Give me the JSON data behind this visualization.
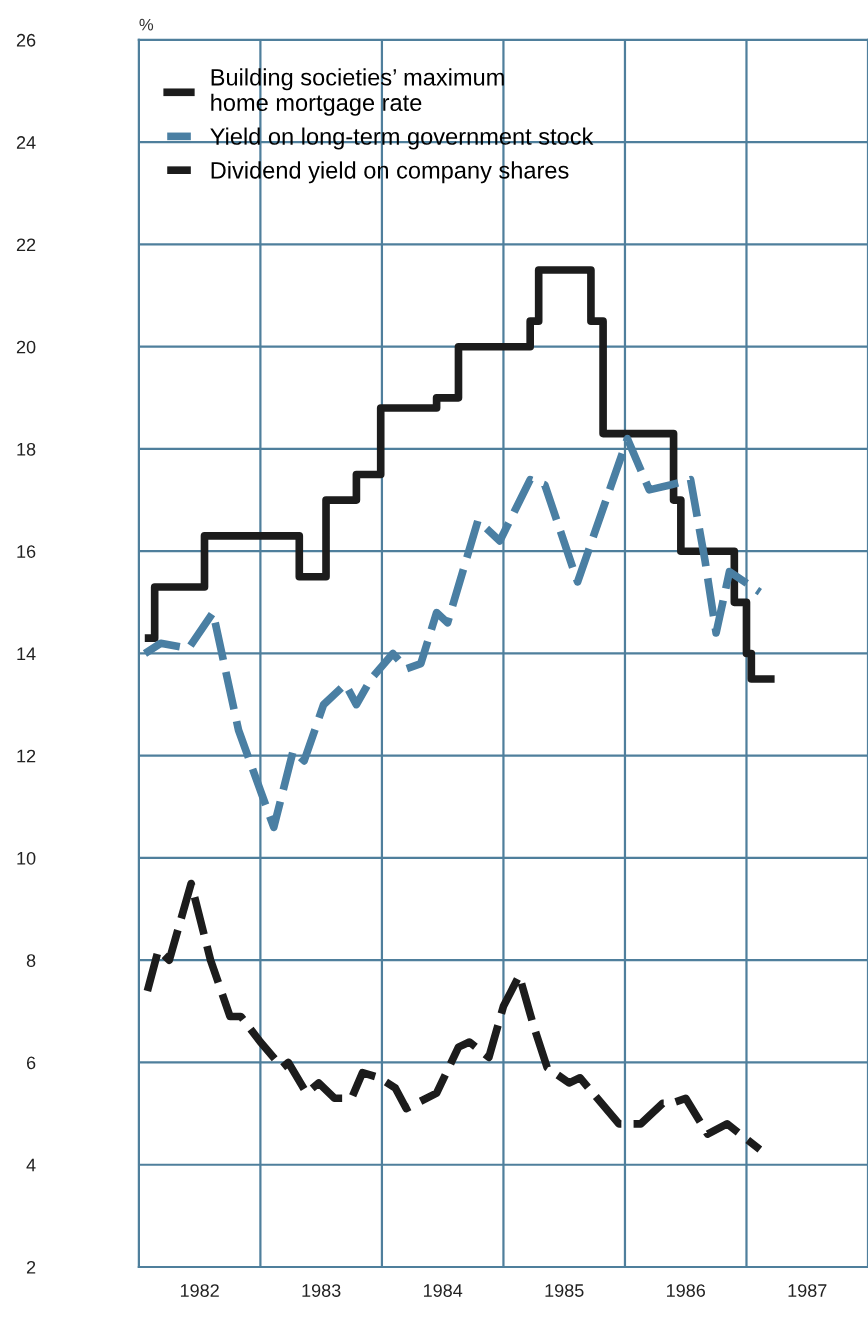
{
  "chart_data": {
    "type": "line",
    "ylabel": "%",
    "xlim": [
      1982,
      1988
    ],
    "xticks": [
      {
        "value": 1982,
        "label": null
      },
      {
        "value": 1983,
        "label": null
      },
      {
        "value": 1984,
        "label": null
      },
      {
        "value": 1985,
        "label": null
      },
      {
        "value": 1986,
        "label": null
      },
      {
        "value": 1987,
        "label": null
      },
      {
        "value": 1982.5,
        "label": "1982"
      },
      {
        "value": 1983.5,
        "label": "1983"
      },
      {
        "value": 1984.5,
        "label": "1984"
      },
      {
        "value": 1985.5,
        "label": "1985"
      },
      {
        "value": 1986.5,
        "label": "1986"
      },
      {
        "value": 1987.5,
        "label": "1987"
      }
    ],
    "ylim": [
      2,
      26
    ],
    "yticks": [
      2,
      4,
      6,
      8,
      10,
      12,
      14,
      16,
      18,
      20,
      22,
      24,
      26
    ],
    "grid": true,
    "legend": "top left",
    "marker": "none",
    "series": [
      {
        "name": "Building societies’ maximum\nhome mortgage rate",
        "type": "step",
        "line_style": "solid",
        "color": "#1c1c1c",
        "x": [
          1982.08,
          1982.13,
          1982.54,
          1983.32,
          1983.54,
          1983.79,
          1983.99,
          1984.45,
          1984.63,
          1985.22,
          1985.29,
          1985.72,
          1985.82,
          1986.4,
          1986.46,
          1986.9,
          1987.0,
          1987.04,
          1987.2
        ],
        "values": [
          14.3,
          15.3,
          16.3,
          15.5,
          17.0,
          17.5,
          18.8,
          19.0,
          20.0,
          20.5,
          21.5,
          20.5,
          18.3,
          17.0,
          16.0,
          15.0,
          14.0,
          13.5,
          13.5
        ]
      },
      {
        "name": "Yield on long-term government stock",
        "line_style": "dashed",
        "color": "#4a7fa3",
        "x": [
          1982.05,
          1982.18,
          1982.41,
          1982.61,
          1982.82,
          1983.11,
          1983.27,
          1983.36,
          1983.52,
          1983.7,
          1983.79,
          1983.91,
          1984.09,
          1984.2,
          1984.32,
          1984.45,
          1984.54,
          1984.79,
          1984.97,
          1985.22,
          1985.34,
          1985.61,
          1986.02,
          1986.2,
          1986.38,
          1986.54,
          1986.66,
          1986.75,
          1986.86,
          1987.11
        ],
        "values": [
          14.0,
          14.2,
          14.1,
          14.8,
          12.5,
          10.6,
          12.1,
          11.9,
          13.0,
          13.4,
          13.0,
          13.5,
          14.0,
          13.7,
          13.8,
          14.8,
          14.6,
          16.6,
          16.2,
          17.4,
          17.3,
          15.4,
          18.2,
          17.2,
          17.3,
          17.4,
          15.8,
          14.4,
          15.6,
          15.2
        ]
      },
      {
        "name": "Dividend yield on company shares",
        "line_style": "dashed",
        "color": "#1c1c1c",
        "x": [
          1982.07,
          1982.16,
          1982.25,
          1982.43,
          1982.59,
          1982.75,
          1982.84,
          1983.0,
          1983.18,
          1983.23,
          1983.38,
          1983.48,
          1983.61,
          1983.75,
          1983.84,
          1983.98,
          1984.11,
          1984.2,
          1984.45,
          1984.63,
          1984.72,
          1984.88,
          1985.0,
          1985.13,
          1985.25,
          1985.36,
          1985.54,
          1985.63,
          1985.95,
          1986.13,
          1986.31,
          1986.38,
          1986.5,
          1986.68,
          1986.84,
          1987.11
        ],
        "values": [
          7.4,
          8.2,
          8.0,
          9.5,
          8.0,
          6.9,
          6.9,
          6.4,
          5.9,
          6.0,
          5.4,
          5.6,
          5.3,
          5.3,
          5.8,
          5.7,
          5.5,
          5.1,
          5.4,
          6.3,
          6.4,
          6.1,
          7.1,
          7.7,
          6.7,
          5.9,
          5.6,
          5.7,
          4.8,
          4.8,
          5.2,
          5.2,
          5.3,
          4.6,
          4.8,
          4.3
        ]
      }
    ]
  }
}
